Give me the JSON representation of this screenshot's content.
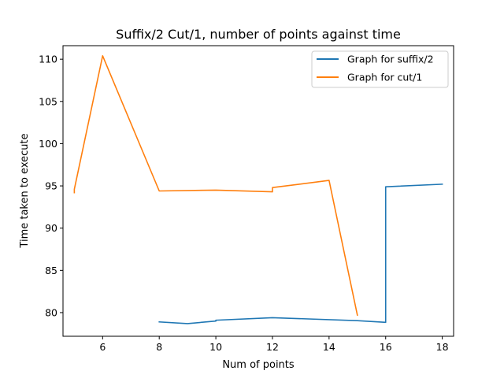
{
  "chart_data": {
    "type": "line",
    "title": "Suffix/2 Cut/1, number of points against time",
    "xlabel": "Num of points",
    "ylabel": "Time taken to execute",
    "xlim": [
      4.6,
      18.4
    ],
    "ylim": [
      77.2,
      111.6
    ],
    "xticks": [
      6,
      8,
      10,
      12,
      14,
      16,
      18
    ],
    "yticks": [
      80,
      85,
      90,
      95,
      100,
      105,
      110
    ],
    "grid": false,
    "legend_position": "top-right",
    "series": [
      {
        "name": "Graph for suffix/2",
        "color": "#1f77b4",
        "points": [
          [
            8,
            78.9
          ],
          [
            9,
            78.7
          ],
          [
            10,
            79.0
          ],
          [
            10,
            79.1
          ],
          [
            12,
            79.4
          ],
          [
            15,
            79.05
          ],
          [
            16,
            78.85
          ],
          [
            16,
            94.9
          ],
          [
            18,
            95.2
          ]
        ]
      },
      {
        "name": "Graph for cut/1",
        "color": "#ff7f0e",
        "points": [
          [
            5,
            94.2
          ],
          [
            5,
            94.6
          ],
          [
            6,
            110.4
          ],
          [
            8,
            94.4
          ],
          [
            10,
            94.5
          ],
          [
            12,
            94.3
          ],
          [
            12,
            94.8
          ],
          [
            14,
            95.65
          ],
          [
            15,
            79.7
          ]
        ]
      }
    ]
  }
}
